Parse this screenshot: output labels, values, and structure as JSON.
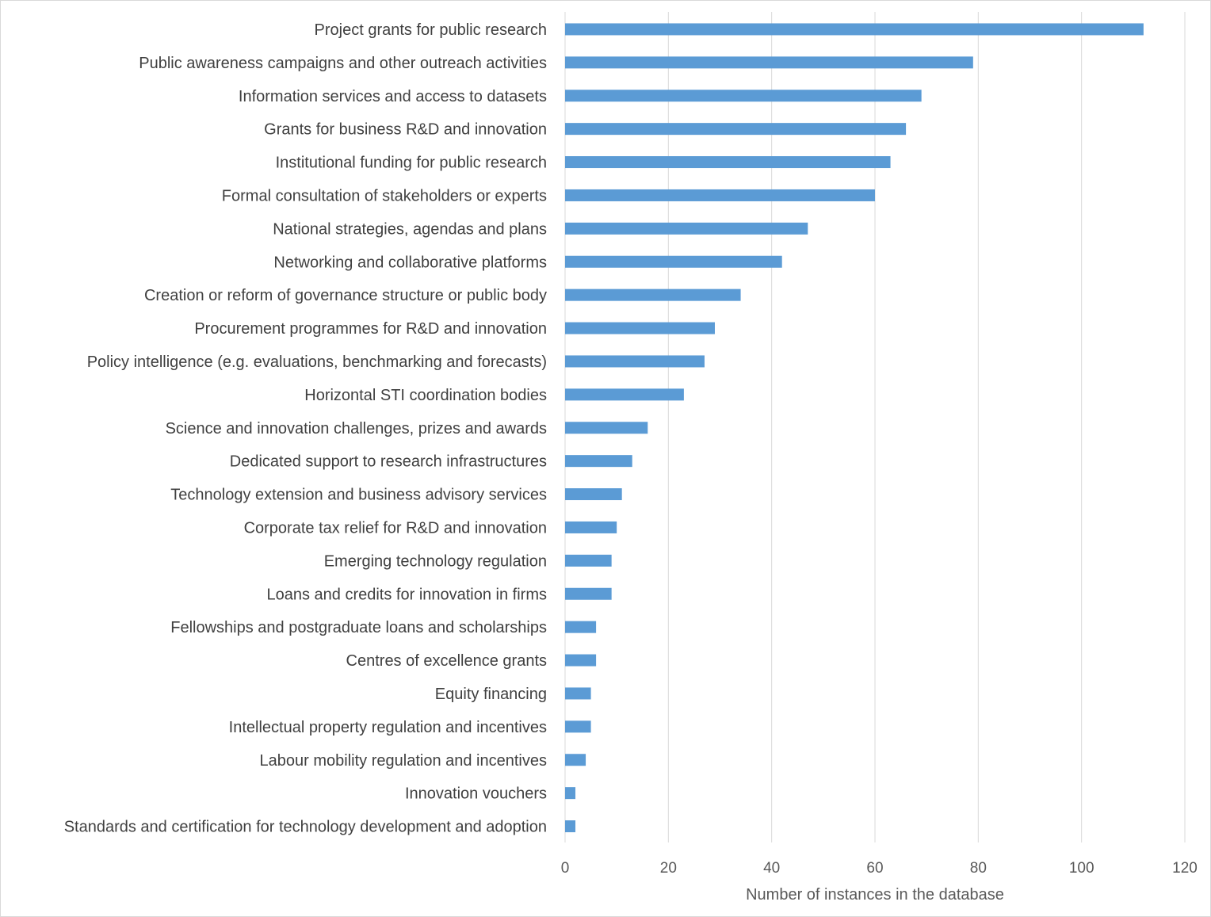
{
  "chart_data": {
    "type": "bar",
    "orientation": "horizontal",
    "title": "",
    "xlabel": "Number of instances in the database",
    "ylabel": "",
    "xlim": [
      0,
      120
    ],
    "xticks": [
      "0",
      "20",
      "40",
      "60",
      "80",
      "100",
      "120"
    ],
    "grid": "vertical gridlines",
    "legend": "none",
    "bar_color": "#5b9bd5",
    "categories": [
      "Project grants for public research",
      "Public awareness campaigns and other outreach activities",
      "Information services and access to datasets",
      "Grants for business R&D and innovation",
      "Institutional funding for public research",
      "Formal consultation of stakeholders or experts",
      "National strategies, agendas and plans",
      "Networking and collaborative platforms",
      "Creation or reform of governance structure or public body",
      "Procurement programmes for R&D and innovation",
      "Policy intelligence (e.g. evaluations, benchmarking and forecasts)",
      "Horizontal STI coordination bodies",
      "Science and innovation challenges, prizes and awards",
      "Dedicated support to research infrastructures",
      "Technology extension and business advisory services",
      "Corporate tax relief for R&D and innovation",
      "Emerging technology regulation",
      "Loans and credits for innovation in firms",
      "Fellowships and postgraduate loans and scholarships",
      "Centres of excellence grants",
      "Equity financing",
      "Intellectual property regulation and incentives",
      "Labour mobility regulation and incentives",
      "Innovation vouchers",
      "Standards and certification for technology development and adoption"
    ],
    "values": [
      112,
      79,
      69,
      66,
      63,
      60,
      47,
      42,
      34,
      29,
      27,
      23,
      16,
      13,
      11,
      10,
      9,
      9,
      6,
      6,
      5,
      5,
      4,
      2,
      2
    ]
  }
}
